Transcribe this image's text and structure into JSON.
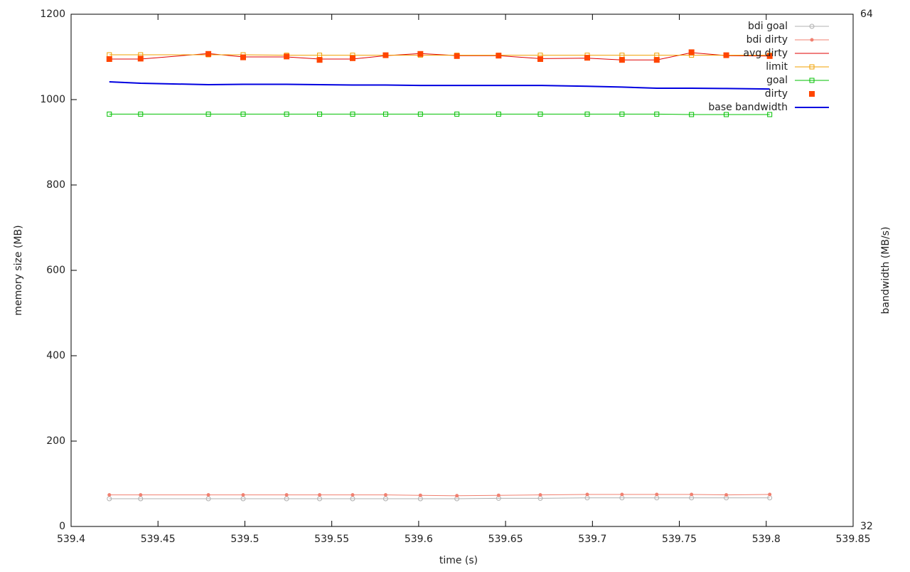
{
  "chart_data": {
    "type": "line",
    "xlabel": "time (s)",
    "ylabel": "memory size (MB)",
    "y2label": "bandwidth (MB/s)",
    "x": [
      539.422,
      539.44,
      539.479,
      539.499,
      539.524,
      539.543,
      539.562,
      539.581,
      539.601,
      539.622,
      539.646,
      539.67,
      539.697,
      539.717,
      539.737,
      539.757,
      539.777,
      539.802
    ],
    "xlim": [
      539.4,
      539.85
    ],
    "xticks": [
      539.4,
      539.45,
      539.5,
      539.55,
      539.6,
      539.65,
      539.7,
      539.75,
      539.8,
      539.85
    ],
    "ylim": [
      0,
      1200
    ],
    "yticks": [
      0,
      200,
      400,
      600,
      800,
      1000,
      1200
    ],
    "y2lim": [
      32,
      64
    ],
    "y2ticks": [
      32,
      64
    ],
    "grid": false,
    "legend": "top-right",
    "series": [
      {
        "name": "bdi goal",
        "color": "#b0b0b0",
        "marker": "open-circle",
        "line": true,
        "values": [
          65,
          65,
          65,
          65,
          65,
          65,
          65,
          65,
          65,
          65,
          66,
          66,
          67,
          67,
          67,
          67,
          67,
          67
        ]
      },
      {
        "name": "bdi dirty",
        "color": "#f08070",
        "marker": "dot",
        "line": true,
        "values": [
          74,
          74,
          74,
          74,
          74,
          74,
          74,
          74,
          73,
          72,
          73,
          74,
          75,
          75,
          75,
          75,
          74,
          75
        ]
      },
      {
        "name": "avg dirty",
        "color": "#e00000",
        "marker": "none",
        "line": true,
        "values": [
          1095,
          1095,
          1108,
          1100,
          1100,
          1095,
          1095,
          1103,
          1108,
          1103,
          1103,
          1096,
          1097,
          1093,
          1093,
          1110,
          1103,
          1102
        ]
      },
      {
        "name": "limit",
        "color": "#f0a000",
        "marker": "open-square",
        "line": true,
        "values": [
          1105,
          1105,
          1105,
          1105,
          1104,
          1104,
          1104,
          1104,
          1104,
          1104,
          1104,
          1104,
          1104,
          1104,
          1104,
          1104,
          1104,
          1104
        ]
      },
      {
        "name": "goal",
        "color": "#00c000",
        "marker": "open-square",
        "line": true,
        "values": [
          966,
          966,
          966,
          966,
          966,
          966,
          966,
          966,
          966,
          966,
          966,
          966,
          966,
          966,
          966,
          965,
          965,
          965
        ]
      },
      {
        "name": "dirty",
        "color": "#ff4500",
        "marker": "filled-square",
        "line": false,
        "values": [
          1095,
          1096,
          1107,
          1099,
          1101,
          1093,
          1097,
          1104,
          1107,
          1102,
          1103,
          1095,
          1098,
          1093,
          1093,
          1111,
          1104,
          1102
        ]
      },
      {
        "name": "base bandwidth",
        "color": "#0000e0",
        "marker": "none",
        "line": true,
        "axis": "y2",
        "values": [
          59.78,
          59.69,
          59.6,
          59.62,
          59.62,
          59.6,
          59.58,
          59.58,
          59.55,
          59.55,
          59.55,
          59.55,
          59.5,
          59.45,
          59.38,
          59.38,
          59.36,
          59.33
        ]
      }
    ]
  }
}
